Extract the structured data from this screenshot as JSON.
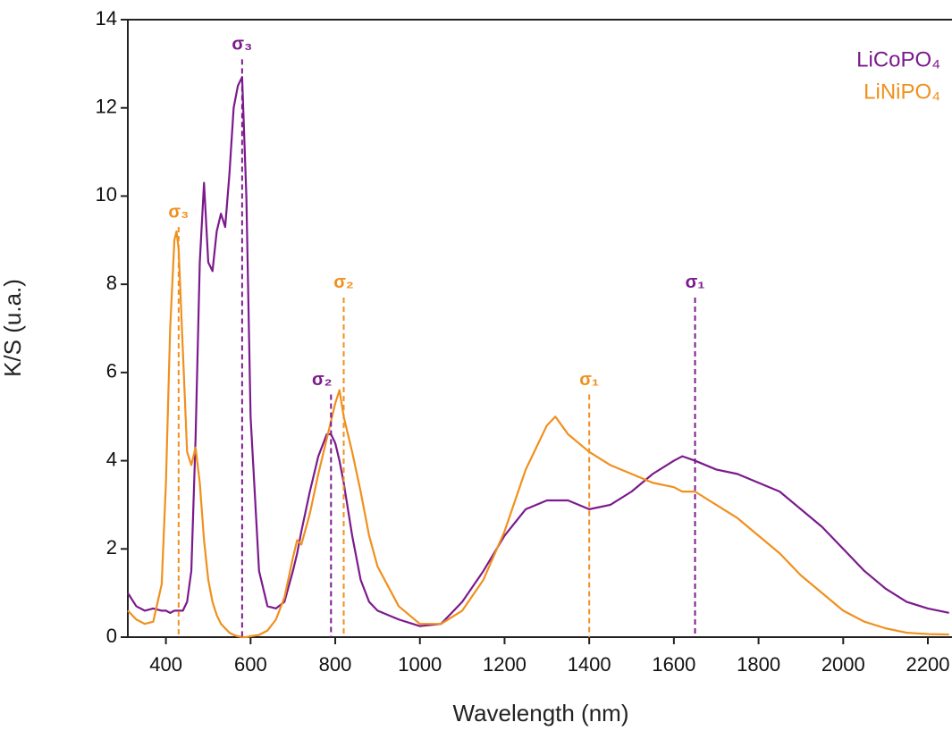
{
  "chart_data": {
    "type": "line",
    "x_label": "Wavelength (nm)",
    "y_label": "K/S (u.a.)",
    "x": [
      310,
      330,
      350,
      370,
      390,
      400,
      410,
      420,
      425,
      430,
      440,
      450,
      460,
      470,
      480,
      490,
      500,
      510,
      520,
      530,
      540,
      550,
      560,
      570,
      580,
      590,
      600,
      620,
      640,
      660,
      680,
      700,
      710,
      720,
      740,
      760,
      780,
      790,
      800,
      810,
      820,
      840,
      860,
      880,
      900,
      950,
      1000,
      1050,
      1100,
      1150,
      1200,
      1250,
      1300,
      1320,
      1350,
      1400,
      1450,
      1500,
      1550,
      1600,
      1620,
      1650,
      1700,
      1750,
      1800,
      1850,
      1900,
      1950,
      2000,
      2050,
      2100,
      2150,
      2200,
      2250
    ],
    "series": [
      {
        "name": "LiCoPO₄",
        "color": "#7b1a8c",
        "values": [
          1.0,
          0.7,
          0.6,
          0.65,
          0.6,
          0.6,
          0.55,
          0.6,
          0.6,
          0.6,
          0.6,
          0.8,
          1.5,
          4.5,
          8.5,
          10.3,
          8.5,
          8.3,
          9.2,
          9.6,
          9.3,
          10.5,
          12.0,
          12.5,
          12.7,
          10.0,
          5.0,
          1.5,
          0.7,
          0.65,
          0.8,
          1.5,
          1.9,
          2.4,
          3.3,
          4.1,
          4.6,
          4.6,
          4.4,
          4.0,
          3.5,
          2.3,
          1.3,
          0.8,
          0.6,
          0.4,
          0.25,
          0.3,
          0.8,
          1.5,
          2.3,
          2.9,
          3.1,
          3.1,
          3.1,
          2.9,
          3.0,
          3.3,
          3.7,
          4.0,
          4.1,
          4.0,
          3.8,
          3.7,
          3.5,
          3.3,
          2.9,
          2.5,
          2.0,
          1.5,
          1.1,
          0.8,
          0.65,
          0.55
        ]
      },
      {
        "name": "LiNiPO₄",
        "color": "#f0901e",
        "values": [
          0.6,
          0.4,
          0.3,
          0.35,
          1.2,
          3.5,
          7.0,
          9.0,
          9.2,
          8.8,
          6.5,
          4.2,
          3.9,
          4.3,
          3.5,
          2.2,
          1.3,
          0.8,
          0.5,
          0.3,
          0.2,
          0.1,
          0.05,
          0.02,
          0.0,
          0.0,
          0.02,
          0.05,
          0.15,
          0.4,
          0.9,
          1.8,
          2.2,
          2.1,
          2.8,
          3.7,
          4.5,
          4.9,
          5.3,
          5.6,
          5.0,
          4.2,
          3.3,
          2.3,
          1.6,
          0.7,
          0.3,
          0.3,
          0.6,
          1.3,
          2.4,
          3.8,
          4.8,
          5.0,
          4.6,
          4.2,
          3.9,
          3.7,
          3.5,
          3.4,
          3.3,
          3.3,
          3.0,
          2.7,
          2.3,
          1.9,
          1.4,
          1.0,
          0.6,
          0.35,
          0.2,
          0.1,
          0.07,
          0.06
        ]
      }
    ],
    "annotations": [
      {
        "text": "σ₃",
        "x": 430,
        "y": 9.3,
        "color": "#f0901e"
      },
      {
        "text": "σ₃",
        "x": 580,
        "y": 13.1,
        "color": "#7b1a8c"
      },
      {
        "text": "σ₂",
        "x": 790,
        "y": 5.5,
        "color": "#7b1a8c"
      },
      {
        "text": "σ₂",
        "x": 820,
        "y": 7.7,
        "color": "#f0901e"
      },
      {
        "text": "σ₁",
        "x": 1400,
        "y": 5.5,
        "color": "#f0901e"
      },
      {
        "text": "σ₁",
        "x": 1650,
        "y": 7.7,
        "color": "#7b1a8c"
      }
    ],
    "xlim": [
      310,
      2257
    ],
    "ylim": [
      0,
      14
    ],
    "xticks": [
      400,
      600,
      800,
      1000,
      1200,
      1400,
      1600,
      1800,
      2000,
      2200
    ],
    "yticks": [
      0,
      2,
      4,
      6,
      8,
      10,
      12,
      14
    ],
    "legend": "upper right"
  }
}
